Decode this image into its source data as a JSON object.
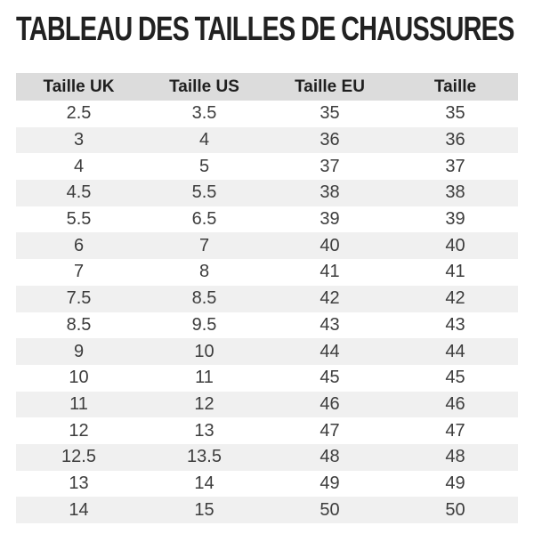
{
  "page": {
    "title": "TABLEAU DES TAILLES DE CHAUSSURES"
  },
  "chart_data": {
    "type": "table",
    "title": "TABLEAU DES TAILLES DE CHAUSSURES",
    "columns": [
      "Taille UK",
      "Taille US",
      "Taille EU",
      "Taille"
    ],
    "rows": [
      [
        "2.5",
        "3.5",
        "35",
        "35"
      ],
      [
        "3",
        "4",
        "36",
        "36"
      ],
      [
        "4",
        "5",
        "37",
        "37"
      ],
      [
        "4.5",
        "5.5",
        "38",
        "38"
      ],
      [
        "5.5",
        "6.5",
        "39",
        "39"
      ],
      [
        "6",
        "7",
        "40",
        "40"
      ],
      [
        "7",
        "8",
        "41",
        "41"
      ],
      [
        "7.5",
        "8.5",
        "42",
        "42"
      ],
      [
        "8.5",
        "9.5",
        "43",
        "43"
      ],
      [
        "9",
        "10",
        "44",
        "44"
      ],
      [
        "10",
        "11",
        "45",
        "45"
      ],
      [
        "11",
        "12",
        "46",
        "46"
      ],
      [
        "12",
        "13",
        "47",
        "47"
      ],
      [
        "12.5",
        "13.5",
        "48",
        "48"
      ],
      [
        "13",
        "14",
        "49",
        "49"
      ],
      [
        "14",
        "15",
        "50",
        "50"
      ]
    ],
    "layout": {
      "columns_equal_width": true,
      "zebra_striping": "even data rows shaded",
      "grid_lines": "none"
    }
  },
  "colors": {
    "page_bg": "#ffffff",
    "title_text": "#212121",
    "header_bg": "#dcdcdc",
    "header_text": "#1f1f1f",
    "row_alt_bg": "#f0f0f0",
    "cell_text": "#3d3d3d"
  }
}
